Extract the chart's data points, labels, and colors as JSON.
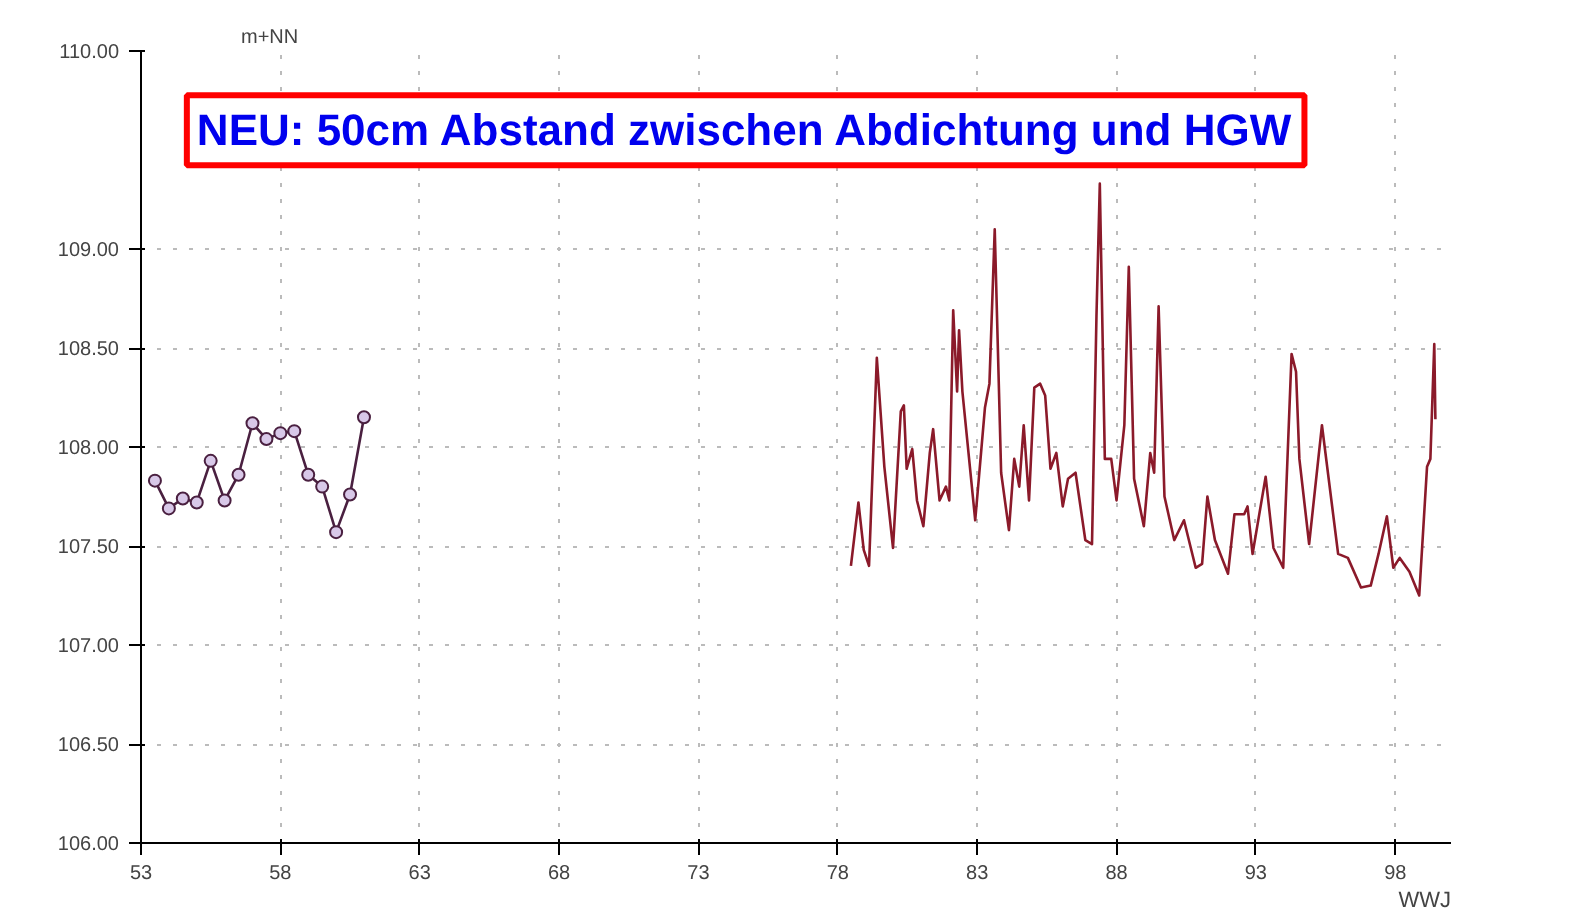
{
  "chart_data": {
    "type": "line",
    "xlabel": "WWJ",
    "ylabel": "m+NN",
    "annotations": [
      "NEU: 50cm Abstand zwischen Abdichtung und HGW"
    ],
    "xlim": [
      53,
      100
    ],
    "ylim": [
      106,
      110
    ],
    "xticks": [
      53,
      58,
      63,
      68,
      73,
      78,
      83,
      88,
      93,
      98
    ],
    "yticks": [
      {
        "value": 106,
        "label": "106.00"
      },
      {
        "value": 106.5,
        "label": "106.50"
      },
      {
        "value": 107,
        "label": "107.00"
      },
      {
        "value": 107.5,
        "label": "107.50"
      },
      {
        "value": 108,
        "label": "108.00"
      },
      {
        "value": 108.5,
        "label": "108.50"
      },
      {
        "value": 109,
        "label": "109.00"
      },
      {
        "value": 110,
        "label": "110.00"
      }
    ],
    "grid": true,
    "series": [
      {
        "color": "#4a2040",
        "marker": "circle",
        "x": [
          53.5,
          54,
          54.5,
          55,
          55.5,
          56,
          56.5,
          57,
          57.5,
          58,
          58.5,
          59,
          59.5,
          60,
          60.5,
          61
        ],
        "values": [
          107.83,
          107.69,
          107.74,
          107.72,
          107.93,
          107.73,
          107.86,
          108.12,
          108.04,
          108.07,
          108.08,
          107.86,
          107.8,
          107.57,
          107.76,
          108.15
        ]
      },
      {
        "color": "#8b1a2a",
        "marker": "none",
        "x": [
          78.47,
          78.74,
          78.93,
          79.12,
          79.4,
          79.67,
          79.98,
          80.26,
          80.37,
          80.47,
          80.67,
          80.84,
          81.07,
          81.3,
          81.42,
          81.65,
          81.88,
          82.0,
          82.14,
          82.28,
          82.35,
          82.47,
          82.93,
          83.28,
          83.44,
          83.63,
          83.86,
          84.14,
          84.33,
          84.51,
          84.67,
          84.86,
          85.05,
          85.26,
          85.44,
          85.63,
          85.84,
          86.07,
          86.26,
          86.53,
          86.88,
          87.12,
          87.28,
          87.4,
          87.58,
          87.81,
          88.0,
          88.28,
          88.44,
          88.63,
          88.98,
          89.21,
          89.35,
          89.51,
          89.72,
          90.07,
          90.42,
          90.84,
          91.07,
          91.26,
          91.53,
          92.0,
          92.23,
          92.58,
          92.7,
          92.88,
          93.35,
          93.63,
          93.98,
          94.28,
          94.44,
          94.56,
          94.91,
          95.37,
          95.95,
          96.3,
          96.77,
          97.12,
          97.4,
          97.7,
          97.93,
          98.16,
          98.51,
          98.86,
          99.14,
          99.26,
          99.4,
          99.44
        ],
        "values": [
          107.4,
          107.72,
          107.48,
          107.4,
          108.45,
          107.9,
          107.49,
          108.18,
          108.21,
          107.89,
          107.99,
          107.73,
          107.6,
          107.97,
          108.09,
          107.73,
          107.8,
          107.73,
          108.69,
          108.28,
          108.59,
          108.28,
          107.63,
          108.2,
          108.32,
          109.1,
          107.87,
          107.58,
          107.94,
          107.8,
          108.11,
          107.73,
          108.3,
          108.32,
          108.26,
          107.89,
          107.97,
          107.7,
          107.84,
          107.87,
          107.53,
          107.51,
          108.66,
          109.33,
          107.94,
          107.94,
          107.73,
          108.11,
          108.91,
          107.84,
          107.6,
          107.97,
          107.87,
          108.71,
          107.75,
          107.53,
          107.63,
          107.39,
          107.41,
          107.75,
          107.53,
          107.36,
          107.66,
          107.66,
          107.7,
          107.46,
          107.85,
          107.49,
          107.39,
          108.47,
          108.38,
          107.94,
          107.51,
          108.11,
          107.46,
          107.44,
          107.29,
          107.3,
          107.46,
          107.65,
          107.39,
          107.44,
          107.37,
          107.25,
          107.9,
          107.94,
          108.52,
          108.14
        ]
      }
    ]
  }
}
